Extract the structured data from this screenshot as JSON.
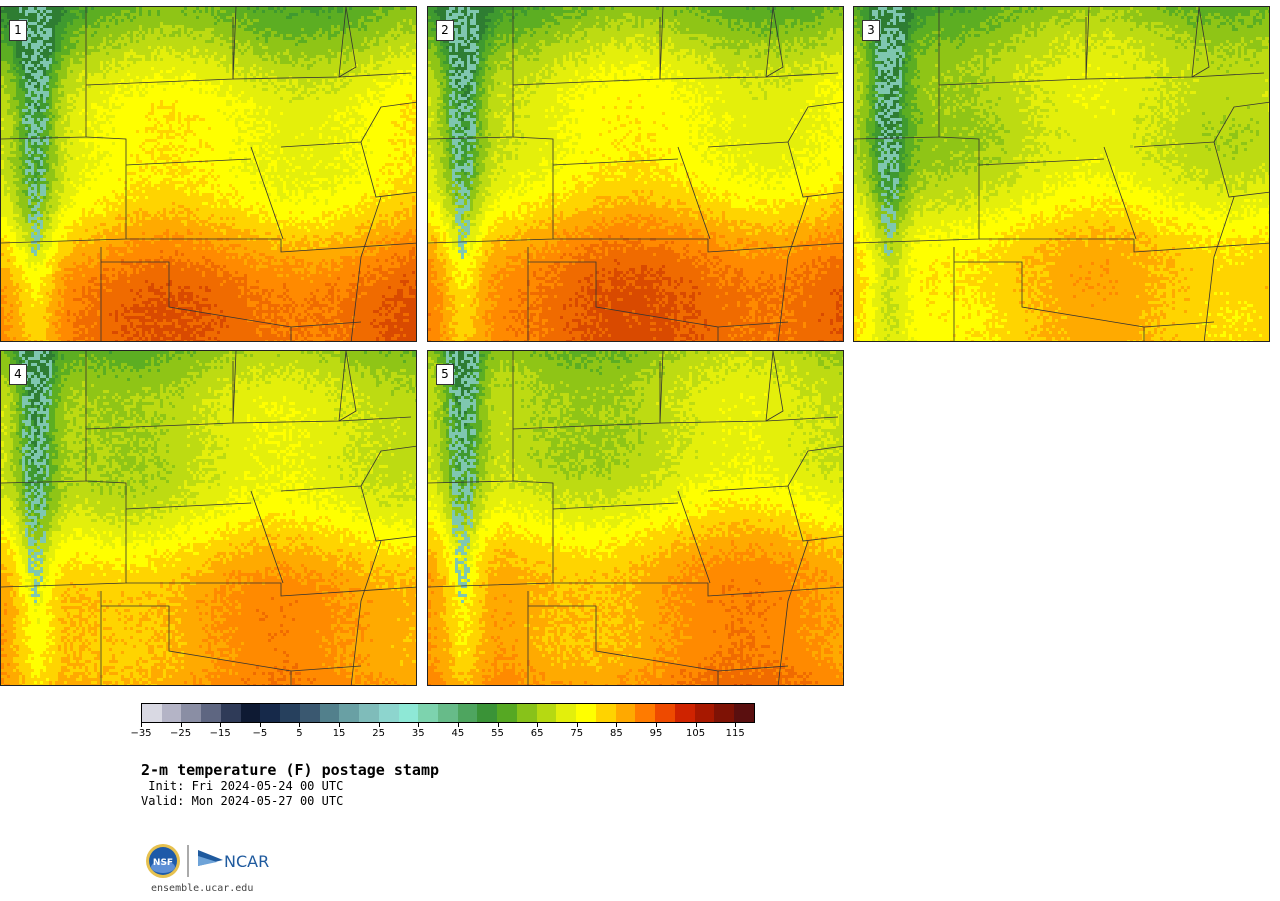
{
  "panels": [
    {
      "label": "1",
      "hot": 0.8
    },
    {
      "label": "2",
      "hot": 0.85
    },
    {
      "label": "3",
      "hot": 0.55
    },
    {
      "label": "4",
      "hot": 0.7
    },
    {
      "label": "5",
      "hot": 0.75
    }
  ],
  "colorbar": {
    "colors": [
      "#d9d9e3",
      "#b4b4c6",
      "#8a8ea4",
      "#5e6681",
      "#2f3b58",
      "#0e1a33",
      "#16294a",
      "#26405d",
      "#3a5870",
      "#52808c",
      "#69a0a4",
      "#7fbcba",
      "#8dd5ce",
      "#8ee8d6",
      "#7dd3ae",
      "#67bb89",
      "#4ea55f",
      "#3a9337",
      "#56a823",
      "#88c21a",
      "#b6d912",
      "#e3ef0c",
      "#ffff00",
      "#ffd300",
      "#ffa900",
      "#ff7b00",
      "#ee4a00",
      "#cf2300",
      "#a71800",
      "#7e1205",
      "#5a0f0f"
    ],
    "tick_labels": [
      "−35",
      "−25",
      "−15",
      "−5",
      "5",
      "15",
      "25",
      "35",
      "45",
      "55",
      "65",
      "75",
      "85",
      "95",
      "105",
      "115"
    ]
  },
  "title": "2-m temperature (F) postage stamp",
  "init": " Init: Fri 2024-05-24 00 UTC",
  "valid": "Valid: Mon 2024-05-27 00 UTC",
  "logo": {
    "nsf": "NSF",
    "ncar": "NCAR"
  },
  "url": "ensemble.ucar.edu"
}
